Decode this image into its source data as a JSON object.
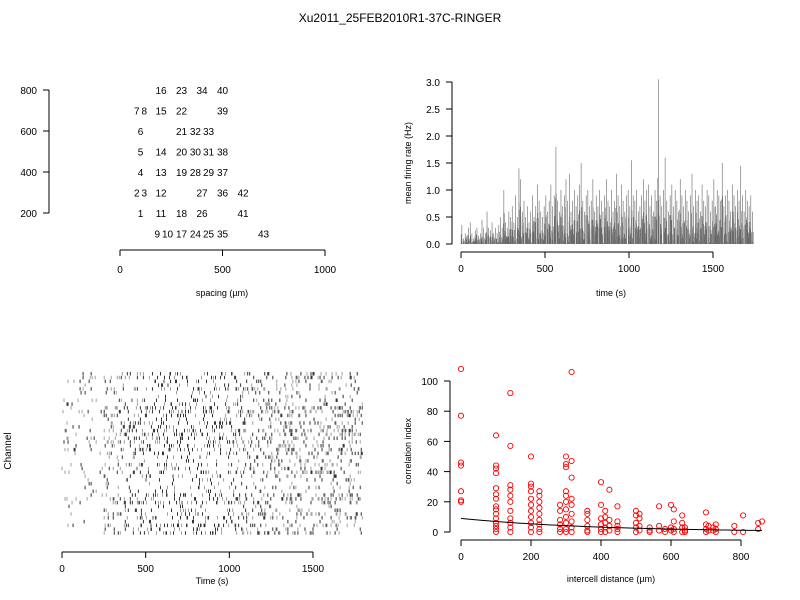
{
  "title": "Xu2011_25FEB2010R1-37C-RINGER",
  "chart_data": [
    {
      "type": "scatter",
      "subtype": "electrode-layout",
      "xlabel": "spacing (µm)",
      "ylabel": "",
      "xlim": [
        0,
        1000
      ],
      "ylim": [
        100,
        800
      ],
      "xticks": [
        "0",
        "500",
        "1000"
      ],
      "yticks": [
        "200",
        "400",
        "600",
        "800"
      ],
      "electrodes": [
        [
          "16",
          200,
          800
        ],
        [
          "23",
          300,
          800
        ],
        [
          "34",
          400,
          800
        ],
        [
          "40",
          500,
          800
        ],
        [
          "7",
          100,
          700
        ],
        [
          "8",
          100,
          700
        ],
        [
          "15",
          200,
          700
        ],
        [
          "22",
          300,
          700
        ],
        [
          "39",
          500,
          700
        ],
        [
          "6",
          100,
          600
        ],
        [
          "21",
          300,
          600
        ],
        [
          "32",
          400,
          600
        ],
        [
          "33",
          400,
          600
        ],
        [
          "5",
          100,
          500
        ],
        [
          "14",
          200,
          500
        ],
        [
          "20",
          300,
          500
        ],
        [
          "30",
          400,
          500
        ],
        [
          "31",
          400,
          500
        ],
        [
          "38",
          500,
          500
        ],
        [
          "4",
          100,
          400
        ],
        [
          "13",
          200,
          400
        ],
        [
          "19",
          300,
          400
        ],
        [
          "28",
          400,
          400
        ],
        [
          "29",
          400,
          400
        ],
        [
          "37",
          500,
          400
        ],
        [
          "2",
          100,
          300
        ],
        [
          "3",
          100,
          300
        ],
        [
          "12",
          200,
          300
        ],
        [
          "27",
          400,
          300
        ],
        [
          "36",
          500,
          300
        ],
        [
          "42",
          600,
          300
        ],
        [
          "1",
          100,
          200
        ],
        [
          "11",
          200,
          200
        ],
        [
          "18",
          300,
          200
        ],
        [
          "26",
          400,
          200
        ],
        [
          "41",
          600,
          200
        ],
        [
          "9",
          200,
          100
        ],
        [
          "10",
          200,
          100
        ],
        [
          "17",
          300,
          100
        ],
        [
          "24",
          400,
          100
        ],
        [
          "25",
          400,
          100
        ],
        [
          "35",
          500,
          100
        ],
        [
          "43",
          700,
          100
        ]
      ]
    },
    {
      "type": "bar",
      "subtype": "firing-rate",
      "xlabel": "time (s)",
      "ylabel": "mean firing rate (Hz)",
      "xlim": [
        0,
        1800
      ],
      "ylim": [
        0,
        3.0
      ],
      "xticks": [
        "0",
        "500",
        "1000",
        "1500"
      ],
      "yticks": [
        "0.0",
        "0.5",
        "1.0",
        "1.5",
        "2.0",
        "2.5",
        "3.0"
      ],
      "bin_s": 10,
      "values": [
        0.35,
        0.1,
        0.2,
        0.15,
        0.3,
        0.4,
        0.2,
        0.1,
        0.25,
        0.3,
        0.15,
        0.2,
        0.45,
        0.3,
        0.2,
        0.6,
        0.3,
        0.25,
        0.4,
        0.2,
        0.3,
        0.2,
        0.35,
        0.5,
        0.3,
        1.0,
        0.4,
        0.3,
        0.6,
        0.5,
        0.7,
        0.4,
        0.9,
        0.5,
        1.4,
        1.2,
        0.6,
        0.8,
        0.5,
        0.7,
        0.4,
        0.6,
        0.9,
        0.5,
        0.7,
        1.1,
        0.8,
        0.6,
        0.5,
        0.7,
        0.9,
        0.6,
        0.8,
        1.1,
        0.7,
        0.9,
        1.8,
        0.8,
        0.6,
        1.0,
        0.7,
        0.9,
        1.2,
        0.8,
        1.3,
        0.6,
        0.8,
        1.0,
        0.7,
        0.9,
        1.1,
        1.5,
        0.8,
        0.6,
        0.9,
        1.0,
        0.7,
        0.8,
        1.2,
        0.6,
        0.9,
        0.7,
        1.0,
        0.8,
        0.6,
        0.9,
        1.2,
        0.8,
        0.7,
        1.0,
        0.6,
        0.8,
        1.3,
        0.9,
        0.7,
        1.1,
        0.8,
        0.6,
        0.9,
        1.0,
        0.7,
        1.55,
        0.9,
        0.8,
        1.0,
        0.6,
        0.7,
        0.9,
        1.2,
        0.8,
        1.0,
        1.1,
        0.7,
        0.9,
        0.6,
        1.0,
        0.8,
        3.05,
        0.9,
        0.7,
        1.0,
        1.6,
        0.8,
        0.6,
        0.9,
        1.1,
        0.7,
        1.0,
        0.8,
        0.6,
        1.2,
        0.9,
        0.7,
        1.0,
        0.8,
        0.6,
        0.9,
        1.3,
        0.7,
        1.0,
        0.8,
        0.9,
        0.6,
        1.1,
        0.8,
        0.7,
        1.0,
        0.9,
        0.6,
        0.8,
        1.2,
        0.7,
        1.0,
        0.9,
        0.8,
        1.5,
        0.7,
        0.9,
        1.0,
        0.8,
        0.6,
        1.1,
        0.9,
        0.7,
        1.0,
        0.8,
        1.45,
        0.9,
        0.6,
        1.0,
        0.8,
        0.7,
        0.9,
        0.6
      ],
      "line_color": "#666666"
    },
    {
      "type": "raster",
      "xlabel": "Time (s)",
      "ylabel": "Channel",
      "xlim": [
        0,
        1800
      ],
      "xticks": [
        "0",
        "500",
        "1000",
        "1500"
      ],
      "channels": 43
    },
    {
      "type": "scatter",
      "subtype": "correlation",
      "xlabel": "intercell distance (µm)",
      "ylabel": "correlation index",
      "xlim": [
        0,
        860
      ],
      "ylim": [
        0,
        108
      ],
      "xticks": [
        "0",
        "200",
        "400",
        "600",
        "800"
      ],
      "yticks": [
        "0",
        "20",
        "40",
        "60",
        "80",
        "100"
      ],
      "point_color": "#ff0000",
      "points": [
        [
          0,
          108
        ],
        [
          0,
          77
        ],
        [
          0,
          46
        ],
        [
          0,
          44
        ],
        [
          0,
          27
        ],
        [
          0,
          21
        ],
        [
          0,
          20
        ],
        [
          100,
          64
        ],
        [
          100,
          44
        ],
        [
          100,
          42
        ],
        [
          100,
          39
        ],
        [
          100,
          29
        ],
        [
          100,
          25
        ],
        [
          100,
          22
        ],
        [
          100,
          17
        ],
        [
          100,
          15
        ],
        [
          100,
          12
        ],
        [
          100,
          9
        ],
        [
          100,
          6
        ],
        [
          100,
          4
        ],
        [
          100,
          2
        ],
        [
          100,
          0
        ],
        [
          141,
          92
        ],
        [
          141,
          57
        ],
        [
          141,
          31
        ],
        [
          141,
          28
        ],
        [
          141,
          24
        ],
        [
          141,
          20
        ],
        [
          141,
          14
        ],
        [
          141,
          9
        ],
        [
          141,
          6
        ],
        [
          141,
          3
        ],
        [
          141,
          0
        ],
        [
          200,
          50
        ],
        [
          200,
          32
        ],
        [
          200,
          30
        ],
        [
          200,
          27
        ],
        [
          200,
          22
        ],
        [
          200,
          18
        ],
        [
          200,
          14
        ],
        [
          200,
          10
        ],
        [
          200,
          6
        ],
        [
          200,
          3
        ],
        [
          200,
          0
        ],
        [
          224,
          27
        ],
        [
          224,
          24
        ],
        [
          224,
          20
        ],
        [
          224,
          16
        ],
        [
          224,
          12
        ],
        [
          224,
          8
        ],
        [
          224,
          5
        ],
        [
          224,
          2
        ],
        [
          224,
          0
        ],
        [
          283,
          18
        ],
        [
          283,
          14
        ],
        [
          283,
          8
        ],
        [
          283,
          5
        ],
        [
          283,
          2
        ],
        [
          283,
          0
        ],
        [
          300,
          50
        ],
        [
          300,
          45
        ],
        [
          300,
          43
        ],
        [
          300,
          27
        ],
        [
          300,
          24
        ],
        [
          300,
          20
        ],
        [
          300,
          15
        ],
        [
          300,
          10
        ],
        [
          300,
          6
        ],
        [
          300,
          2
        ],
        [
          300,
          0
        ],
        [
          316,
          106
        ],
        [
          316,
          47
        ],
        [
          316,
          36
        ],
        [
          316,
          22
        ],
        [
          316,
          18
        ],
        [
          316,
          12
        ],
        [
          316,
          7
        ],
        [
          316,
          3
        ],
        [
          316,
          0
        ],
        [
          361,
          14
        ],
        [
          361,
          12
        ],
        [
          361,
          8
        ],
        [
          361,
          4
        ],
        [
          361,
          1
        ],
        [
          361,
          0
        ],
        [
          400,
          33
        ],
        [
          400,
          18
        ],
        [
          400,
          9
        ],
        [
          400,
          5
        ],
        [
          400,
          2
        ],
        [
          400,
          0
        ],
        [
          412,
          14
        ],
        [
          412,
          10
        ],
        [
          412,
          6
        ],
        [
          412,
          3
        ],
        [
          412,
          0
        ],
        [
          424,
          28
        ],
        [
          424,
          8
        ],
        [
          424,
          4
        ],
        [
          424,
          1
        ],
        [
          447,
          17
        ],
        [
          447,
          7
        ],
        [
          447,
          4
        ],
        [
          447,
          2
        ],
        [
          447,
          0
        ],
        [
          500,
          14
        ],
        [
          500,
          11
        ],
        [
          500,
          6
        ],
        [
          500,
          3
        ],
        [
          500,
          0
        ],
        [
          510,
          12
        ],
        [
          510,
          9
        ],
        [
          510,
          4
        ],
        [
          510,
          1
        ],
        [
          539,
          3
        ],
        [
          539,
          1
        ],
        [
          539,
          0
        ],
        [
          566,
          17
        ],
        [
          566,
          4
        ],
        [
          566,
          1
        ],
        [
          583,
          2
        ],
        [
          583,
          0
        ],
        [
          600,
          18
        ],
        [
          600,
          3
        ],
        [
          600,
          1
        ],
        [
          608,
          15
        ],
        [
          608,
          7
        ],
        [
          608,
          2
        ],
        [
          608,
          0
        ],
        [
          632,
          11
        ],
        [
          632,
          6
        ],
        [
          632,
          3
        ],
        [
          632,
          0
        ],
        [
          640,
          3
        ],
        [
          640,
          1
        ],
        [
          640,
          0
        ],
        [
          700,
          13
        ],
        [
          700,
          5
        ],
        [
          700,
          2
        ],
        [
          700,
          0
        ],
        [
          707,
          4
        ],
        [
          707,
          1
        ],
        [
          721,
          3
        ],
        [
          721,
          1
        ],
        [
          728,
          5
        ],
        [
          728,
          2
        ],
        [
          728,
          0
        ],
        [
          781,
          4
        ],
        [
          781,
          0
        ],
        [
          806,
          11
        ],
        [
          806,
          0
        ],
        [
          849,
          2
        ],
        [
          849,
          6
        ],
        [
          860,
          7
        ]
      ],
      "fit": {
        "type": "exponential",
        "y0": 9,
        "y_end": 1
      }
    }
  ]
}
